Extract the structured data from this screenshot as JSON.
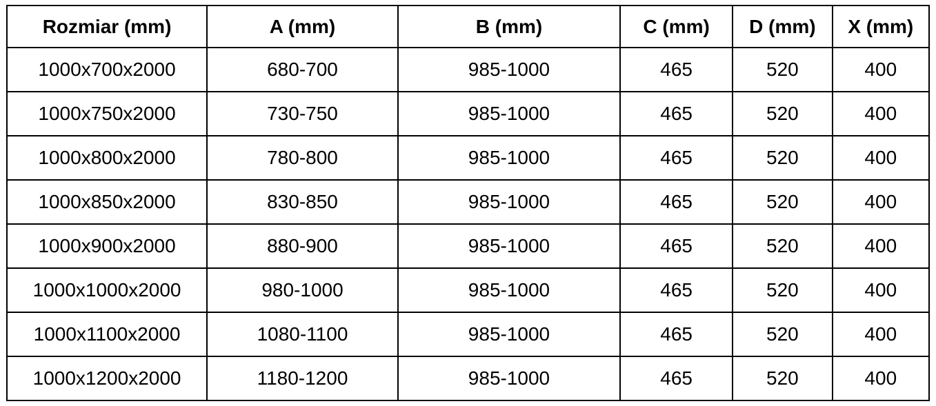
{
  "table": {
    "columns": [
      "Rozmiar (mm)",
      "A (mm)",
      "B (mm)",
      "C (mm)",
      "D (mm)",
      "X (mm)"
    ],
    "rows": [
      [
        "1000x700x2000",
        "680-700",
        "985-1000",
        "465",
        "520",
        "400"
      ],
      [
        "1000x750x2000",
        "730-750",
        "985-1000",
        "465",
        "520",
        "400"
      ],
      [
        "1000x800x2000",
        "780-800",
        "985-1000",
        "465",
        "520",
        "400"
      ],
      [
        "1000x850x2000",
        "830-850",
        "985-1000",
        "465",
        "520",
        "400"
      ],
      [
        "1000x900x2000",
        "880-900",
        "985-1000",
        "465",
        "520",
        "400"
      ],
      [
        "1000x1000x2000",
        "980-1000",
        "985-1000",
        "465",
        "520",
        "400"
      ],
      [
        "1000x1100x2000",
        "1080-1100",
        "985-1000",
        "465",
        "520",
        "400"
      ],
      [
        "1000x1200x2000",
        "1180-1200",
        "985-1000",
        "465",
        "520",
        "400"
      ]
    ],
    "colors": {
      "border": "#000000",
      "background": "#ffffff",
      "text": "#000000"
    }
  }
}
